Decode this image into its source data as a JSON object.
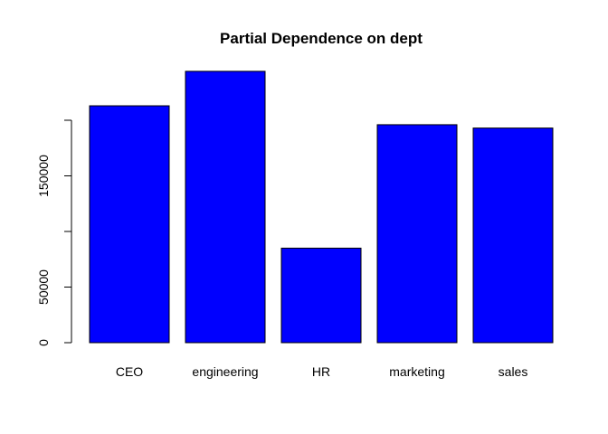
{
  "chart_data": {
    "type": "bar",
    "title": "Partial Dependence on dept",
    "xlabel": "",
    "ylabel": "",
    "categories": [
      "CEO",
      "engineering",
      "HR",
      "marketing",
      "sales"
    ],
    "values": [
      213000,
      244000,
      85000,
      196000,
      193000
    ],
    "ylim": [
      0,
      250000
    ],
    "yticks": [
      0,
      50000,
      100000,
      150000,
      200000
    ],
    "ytick_labels": [
      "0",
      "50000",
      "",
      "150000",
      ""
    ],
    "bar_color": "#0000ff",
    "bar_border_color": "#000000",
    "grid": false,
    "legend": "none"
  }
}
